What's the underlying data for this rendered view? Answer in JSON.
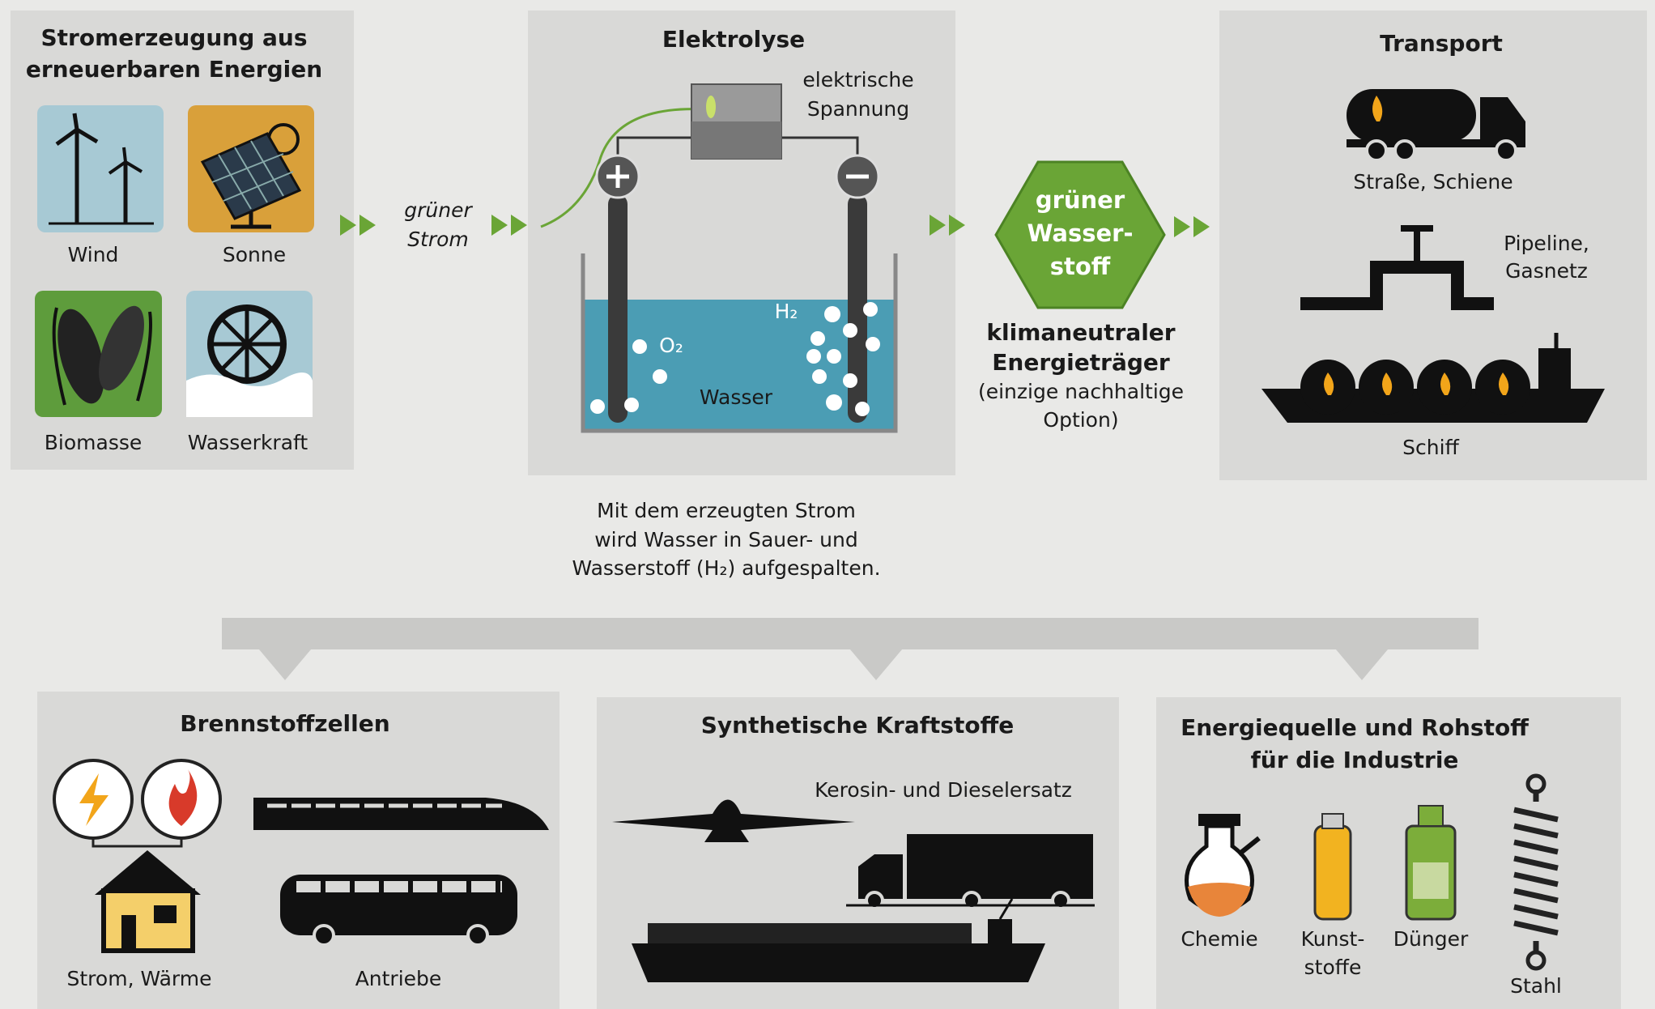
{
  "generation": {
    "title": [
      "Stromerzeugung aus",
      "erneuerbaren Energien"
    ],
    "sources": [
      "Wind",
      "Sonne",
      "Biomasse",
      "Wasserkraft"
    ]
  },
  "flow_label": [
    "grüner",
    "Strom"
  ],
  "electrolysis": {
    "title": "Elektrolyse",
    "voltage": [
      "elektrische",
      "Spannung"
    ],
    "h2": "H₂",
    "o2": "O₂",
    "water": "Wasser",
    "caption": [
      "Mit dem erzeugten Strom",
      "wird Wasser in Sauer- und",
      "Wasserstoff (H₂) aufgespalten."
    ]
  },
  "hydrogen": {
    "label": [
      "grüner",
      "Wasser-",
      "stoff"
    ],
    "carrier": [
      "klimaneutraler",
      "Energieträger"
    ],
    "note": [
      "(einzige nachhaltige",
      "Option)"
    ]
  },
  "transport": {
    "title": "Transport",
    "modes": [
      [
        "Straße, Schiene"
      ],
      [
        "Pipeline,",
        "Gasnetz"
      ],
      [
        "Schiff"
      ]
    ]
  },
  "uses": [
    {
      "title": [
        "Brennstoffzellen"
      ],
      "items": [
        [
          "Strom, Wärme"
        ],
        [
          "Antriebe"
        ]
      ]
    },
    {
      "title": [
        "Synthetische Kraftstoffe"
      ],
      "subtitle": "Kerosin- und Dieselersatz"
    },
    {
      "title": [
        "Energiequelle und Rohstoff",
        "für die Industrie"
      ],
      "items": [
        [
          "Chemie"
        ],
        [
          "Kunst-",
          "stoffe"
        ],
        [
          "Dünger"
        ],
        [
          "Stahl"
        ]
      ]
    }
  ]
}
